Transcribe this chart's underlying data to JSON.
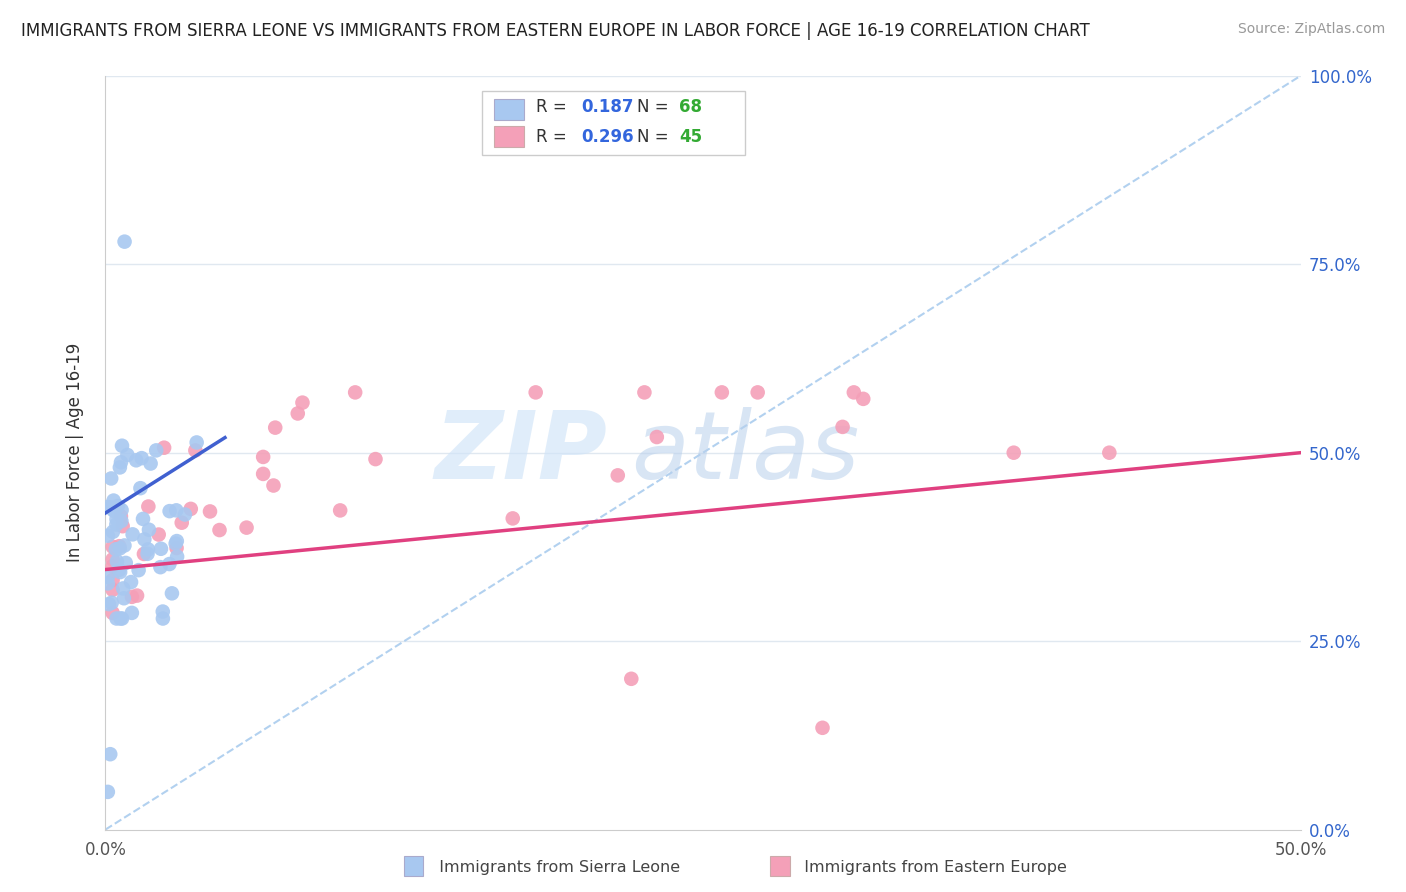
{
  "title": "IMMIGRANTS FROM SIERRA LEONE VS IMMIGRANTS FROM EASTERN EUROPE IN LABOR FORCE | AGE 16-19 CORRELATION CHART",
  "source": "Source: ZipAtlas.com",
  "xlabel_blue": "Immigrants from Sierra Leone",
  "xlabel_pink": "Immigrants from Eastern Europe",
  "ylabel": "In Labor Force | Age 16-19",
  "R_blue": 0.187,
  "N_blue": 68,
  "R_pink": 0.296,
  "N_pink": 45,
  "color_blue": "#A8C8F0",
  "color_pink": "#F4A0B8",
  "trend_blue": "#4060D0",
  "trend_pink": "#E04080",
  "ref_line_color": "#AACCEE",
  "grid_color": "#E0E8F0",
  "xmin": 0.0,
  "xmax": 0.5,
  "ymin": 0.0,
  "ymax": 1.0,
  "watermark_zip": "ZIP",
  "watermark_atlas": "atlas",
  "watermark_color_zip": "#C8D8F0",
  "watermark_color_atlas": "#A8C8E8"
}
